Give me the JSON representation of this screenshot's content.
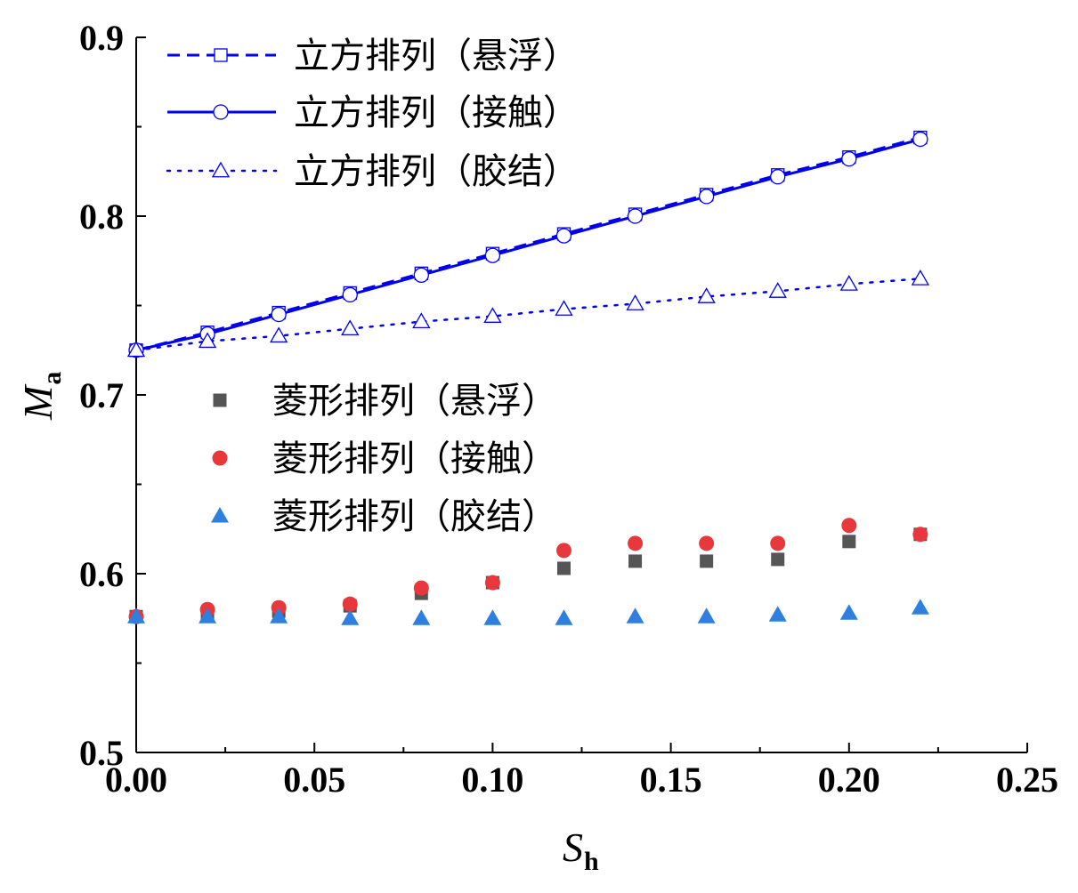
{
  "chart_data": {
    "type": "scatter",
    "xlabel": {
      "main": "S",
      "sub": "h"
    },
    "ylabel": {
      "main": "M",
      "sub": "a"
    },
    "xlim": [
      0,
      0.25
    ],
    "ylim": [
      0.5,
      0.9
    ],
    "xticks": [
      "0.00",
      "0.05",
      "0.10",
      "0.15",
      "0.20",
      "0.25"
    ],
    "yticks": [
      "0.5",
      "0.6",
      "0.7",
      "0.8",
      "0.9"
    ],
    "grid": false,
    "x": [
      0.0,
      0.02,
      0.04,
      0.06,
      0.08,
      0.1,
      0.12,
      0.14,
      0.16,
      0.18,
      0.2,
      0.22
    ],
    "series": [
      {
        "name": "立方排列（悬浮）",
        "style": "dashed-line-open-square",
        "color": "#0000ee",
        "values": [
          0.725,
          0.735,
          0.746,
          0.757,
          0.768,
          0.779,
          0.79,
          0.801,
          0.812,
          0.823,
          0.833,
          0.844
        ]
      },
      {
        "name": "立方排列（接触）",
        "style": "solid-line-open-circle",
        "color": "#0000ee",
        "values": [
          0.725,
          0.734,
          0.745,
          0.756,
          0.767,
          0.778,
          0.789,
          0.8,
          0.811,
          0.822,
          0.832,
          0.843
        ]
      },
      {
        "name": "立方排列（胶结）",
        "style": "dotted-line-open-triangle",
        "color": "#0000ee",
        "values": [
          0.725,
          0.73,
          0.733,
          0.737,
          0.741,
          0.744,
          0.748,
          0.751,
          0.755,
          0.758,
          0.762,
          0.765
        ]
      },
      {
        "name": "菱形排列（悬浮）",
        "style": "filled-square",
        "color": "#555555",
        "values": [
          0.576,
          0.578,
          0.579,
          0.582,
          0.589,
          0.595,
          0.603,
          0.607,
          0.607,
          0.608,
          0.618,
          0.622
        ]
      },
      {
        "name": "菱形排列（接触）",
        "style": "filled-circle",
        "color": "#e8383b",
        "values": [
          0.576,
          0.58,
          0.581,
          0.583,
          0.592,
          0.595,
          0.613,
          0.617,
          0.617,
          0.617,
          0.627,
          0.622
        ]
      },
      {
        "name": "菱形排列（胶结）",
        "style": "filled-triangle",
        "color": "#2e7fe0",
        "values": [
          0.576,
          0.576,
          0.576,
          0.575,
          0.575,
          0.575,
          0.575,
          0.576,
          0.576,
          0.577,
          0.578,
          0.581
        ]
      }
    ],
    "legend": {
      "top_group": [
        "立方排列（悬浮）",
        "立方排列（接触）",
        "立方排列（胶结）"
      ],
      "bottom_group": [
        "菱形排列（悬浮）",
        "菱形排列（接触）",
        "菱形排列（胶结）"
      ]
    }
  }
}
